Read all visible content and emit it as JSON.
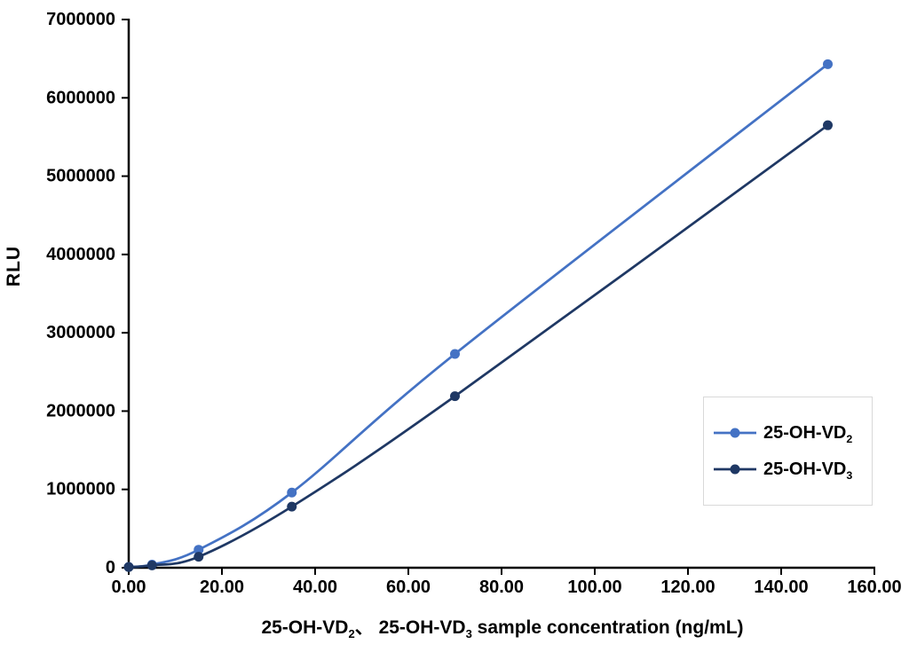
{
  "chart": {
    "y_axis_title": "RLU",
    "x_axis_title_parts": {
      "p1": "25-OH-VD",
      "s1": "2",
      "p2": "、 25-OH-VD",
      "s2": "3",
      "p3": " sample concentration (ng/mL)"
    }
  },
  "chart_data": {
    "type": "line",
    "title": "",
    "xlabel": "25-OH-VD2、 25-OH-VD3 sample concentration (ng/mL)",
    "ylabel": "RLU",
    "x": [
      0,
      5,
      15,
      35,
      70,
      150
    ],
    "series": [
      {
        "name": "25-OH-VD2",
        "label_base": "25-OH-VD",
        "label_sub": "2",
        "color": "#4472C4",
        "values": [
          10000,
          40000,
          230000,
          960000,
          2730000,
          6430000
        ]
      },
      {
        "name": "25-OH-VD3",
        "label_base": "25-OH-VD",
        "label_sub": "3",
        "color": "#1F3864",
        "values": [
          8000,
          30000,
          140000,
          780000,
          2190000,
          5650000
        ]
      }
    ],
    "xlim": [
      0,
      160
    ],
    "ylim": [
      0,
      7000000
    ],
    "x_tick_values": [
      0,
      20,
      40,
      60,
      80,
      100,
      120,
      140,
      160
    ],
    "x_tick_labels": [
      "0.00",
      "20.00",
      "40.00",
      "60.00",
      "80.00",
      "100.00",
      "120.00",
      "140.00",
      "160.00"
    ],
    "y_tick_values": [
      0,
      1000000,
      2000000,
      3000000,
      4000000,
      5000000,
      6000000,
      7000000
    ],
    "y_tick_labels": [
      "0",
      "1000000",
      "2000000",
      "3000000",
      "4000000",
      "5000000",
      "6000000",
      "7000000"
    ],
    "grid": false,
    "smooth": true,
    "markers": true,
    "legend_position": "right-center-box",
    "axis_color": "#000000",
    "legend_border_color": "#d9d9d9"
  }
}
